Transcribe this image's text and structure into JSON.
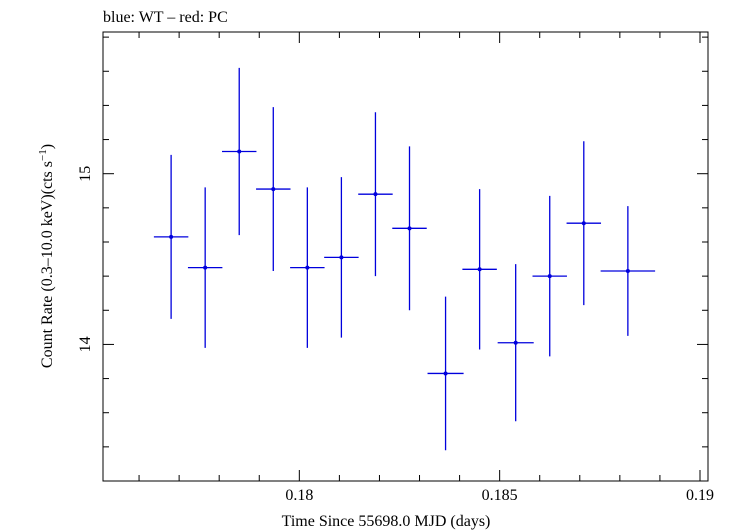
{
  "chart_data": {
    "type": "scatter",
    "title": "blue: WT – red: PC",
    "xlabel": "Time Since 55698.0 MJD (days)",
    "ylabel": "Count Rate (0.3–10.0 keV)(cts s",
    "ylabel_sup": "−1",
    "ylabel_close": ")",
    "xlim": [
      0.1751,
      0.1902
    ],
    "ylim": [
      13.2,
      15.83
    ],
    "x_ticks": [
      0.18,
      0.185,
      0.19
    ],
    "x_tick_labels": [
      "0.18",
      "0.185",
      "0.19"
    ],
    "y_ticks": [
      14,
      15
    ],
    "y_tick_labels": [
      "14",
      "15"
    ],
    "series": [
      {
        "color": "#0000dd",
        "points": [
          {
            "x": 0.1768,
            "y": 14.63,
            "xerr": 0.00043,
            "yerr": 0.48
          },
          {
            "x": 0.17765,
            "y": 14.45,
            "xerr": 0.00043,
            "yerr": 0.47
          },
          {
            "x": 0.1785,
            "y": 15.13,
            "xerr": 0.00043,
            "yerr": 0.49
          },
          {
            "x": 0.17935,
            "y": 14.91,
            "xerr": 0.00043,
            "yerr": 0.48
          },
          {
            "x": 0.1802,
            "y": 14.45,
            "xerr": 0.00043,
            "yerr": 0.47
          },
          {
            "x": 0.18105,
            "y": 14.51,
            "xerr": 0.00043,
            "yerr": 0.47
          },
          {
            "x": 0.1819,
            "y": 14.88,
            "xerr": 0.00043,
            "yerr": 0.48
          },
          {
            "x": 0.18275,
            "y": 14.68,
            "xerr": 0.00043,
            "yerr": 0.48
          },
          {
            "x": 0.18365,
            "y": 13.83,
            "xerr": 0.00045,
            "yerr": 0.45
          },
          {
            "x": 0.1845,
            "y": 14.44,
            "xerr": 0.00043,
            "yerr": 0.47
          },
          {
            "x": 0.1854,
            "y": 14.01,
            "xerr": 0.00045,
            "yerr": 0.46
          },
          {
            "x": 0.18625,
            "y": 14.4,
            "xerr": 0.00043,
            "yerr": 0.47
          },
          {
            "x": 0.1871,
            "y": 14.71,
            "xerr": 0.00043,
            "yerr": 0.48
          },
          {
            "x": 0.1882,
            "y": 14.43,
            "xerr": 0.00068,
            "yerr": 0.38
          }
        ]
      }
    ]
  }
}
